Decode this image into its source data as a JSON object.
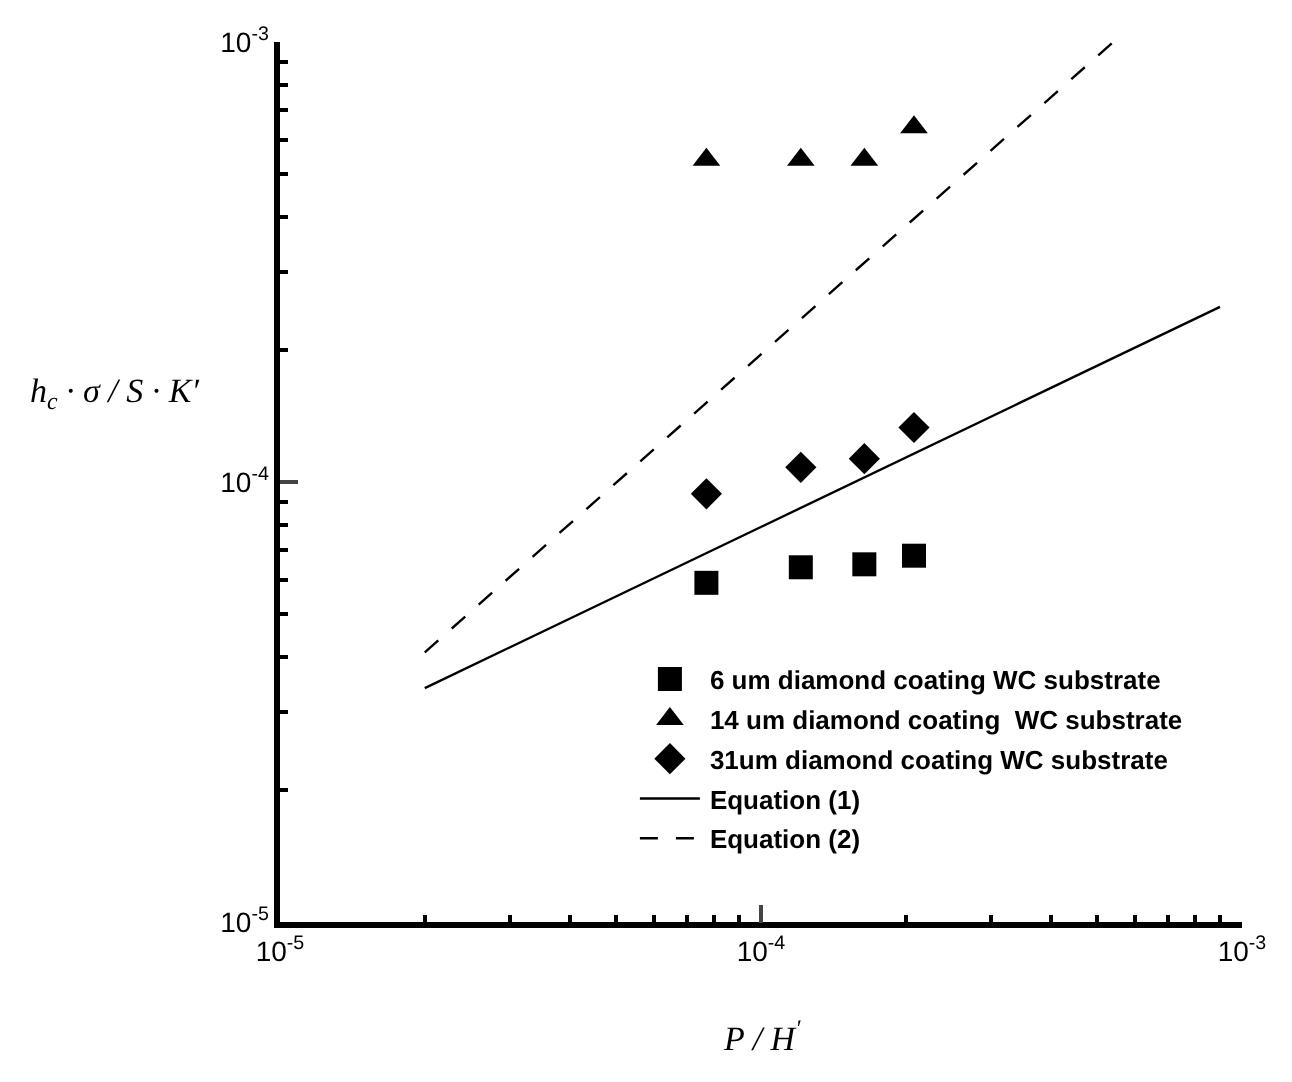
{
  "chart_data": {
    "type": "scatter",
    "xlabel": "P / H$^{'}$",
    "ylabel": "h$_{c}$ · σ / S · K′",
    "log": "xy",
    "xlim": [
      1e-05,
      0.001
    ],
    "ylim": [
      1e-05,
      0.001
    ],
    "xticks": [
      {
        "value": 1e-05,
        "label": "10$^{-5}$"
      },
      {
        "value": 0.0001,
        "label": "10$^{-4}$"
      },
      {
        "value": 0.001,
        "label": "10$^{-3}$"
      }
    ],
    "yticks": [
      {
        "value": 1e-05,
        "label": "10$^{-5}$"
      },
      {
        "value": 0.0001,
        "label": "10$^{-4}$"
      },
      {
        "value": 0.001,
        "label": "10$^{-3}$"
      }
    ],
    "legend": "bottom right",
    "series": [
      {
        "name": "6 um diamond coating WC substrate",
        "color": "#000000",
        "marker": "square",
        "x": [
          7.7e-05,
          0.000121,
          0.000164,
          0.000208
        ],
        "values": [
          5.9e-05,
          6.4e-05,
          6.5e-05,
          6.8e-05
        ]
      },
      {
        "name": "14 um diamond coating  WC substrate",
        "color": "#000000",
        "marker": "triangle",
        "x": [
          7.7e-05,
          0.000121,
          0.000164,
          0.000208
        ],
        "values": [
          0.00054,
          0.00054,
          0.00054,
          0.00064
        ]
      },
      {
        "name": "31um diamond coating WC substrate",
        "color": "#000000",
        "marker": "diamond",
        "x": [
          7.7e-05,
          0.000121,
          0.000164,
          0.000208
        ],
        "values": [
          9.4e-05,
          0.000108,
          0.000113,
          0.000133
        ]
      },
      {
        "name": "Equation (1)",
        "type": "line",
        "color": "#000000",
        "marker": "none",
        "line_style": "solid",
        "x": [
          2e-05,
          0.0009
        ],
        "values": [
          3.4e-05,
          0.00025
        ]
      },
      {
        "name": "Equation (2)",
        "type": "line",
        "color": "#000000",
        "marker": "none",
        "line_style": "dashed",
        "x": [
          2e-05,
          0.00054
        ],
        "values": [
          4.1e-05,
          0.001
        ]
      }
    ]
  }
}
